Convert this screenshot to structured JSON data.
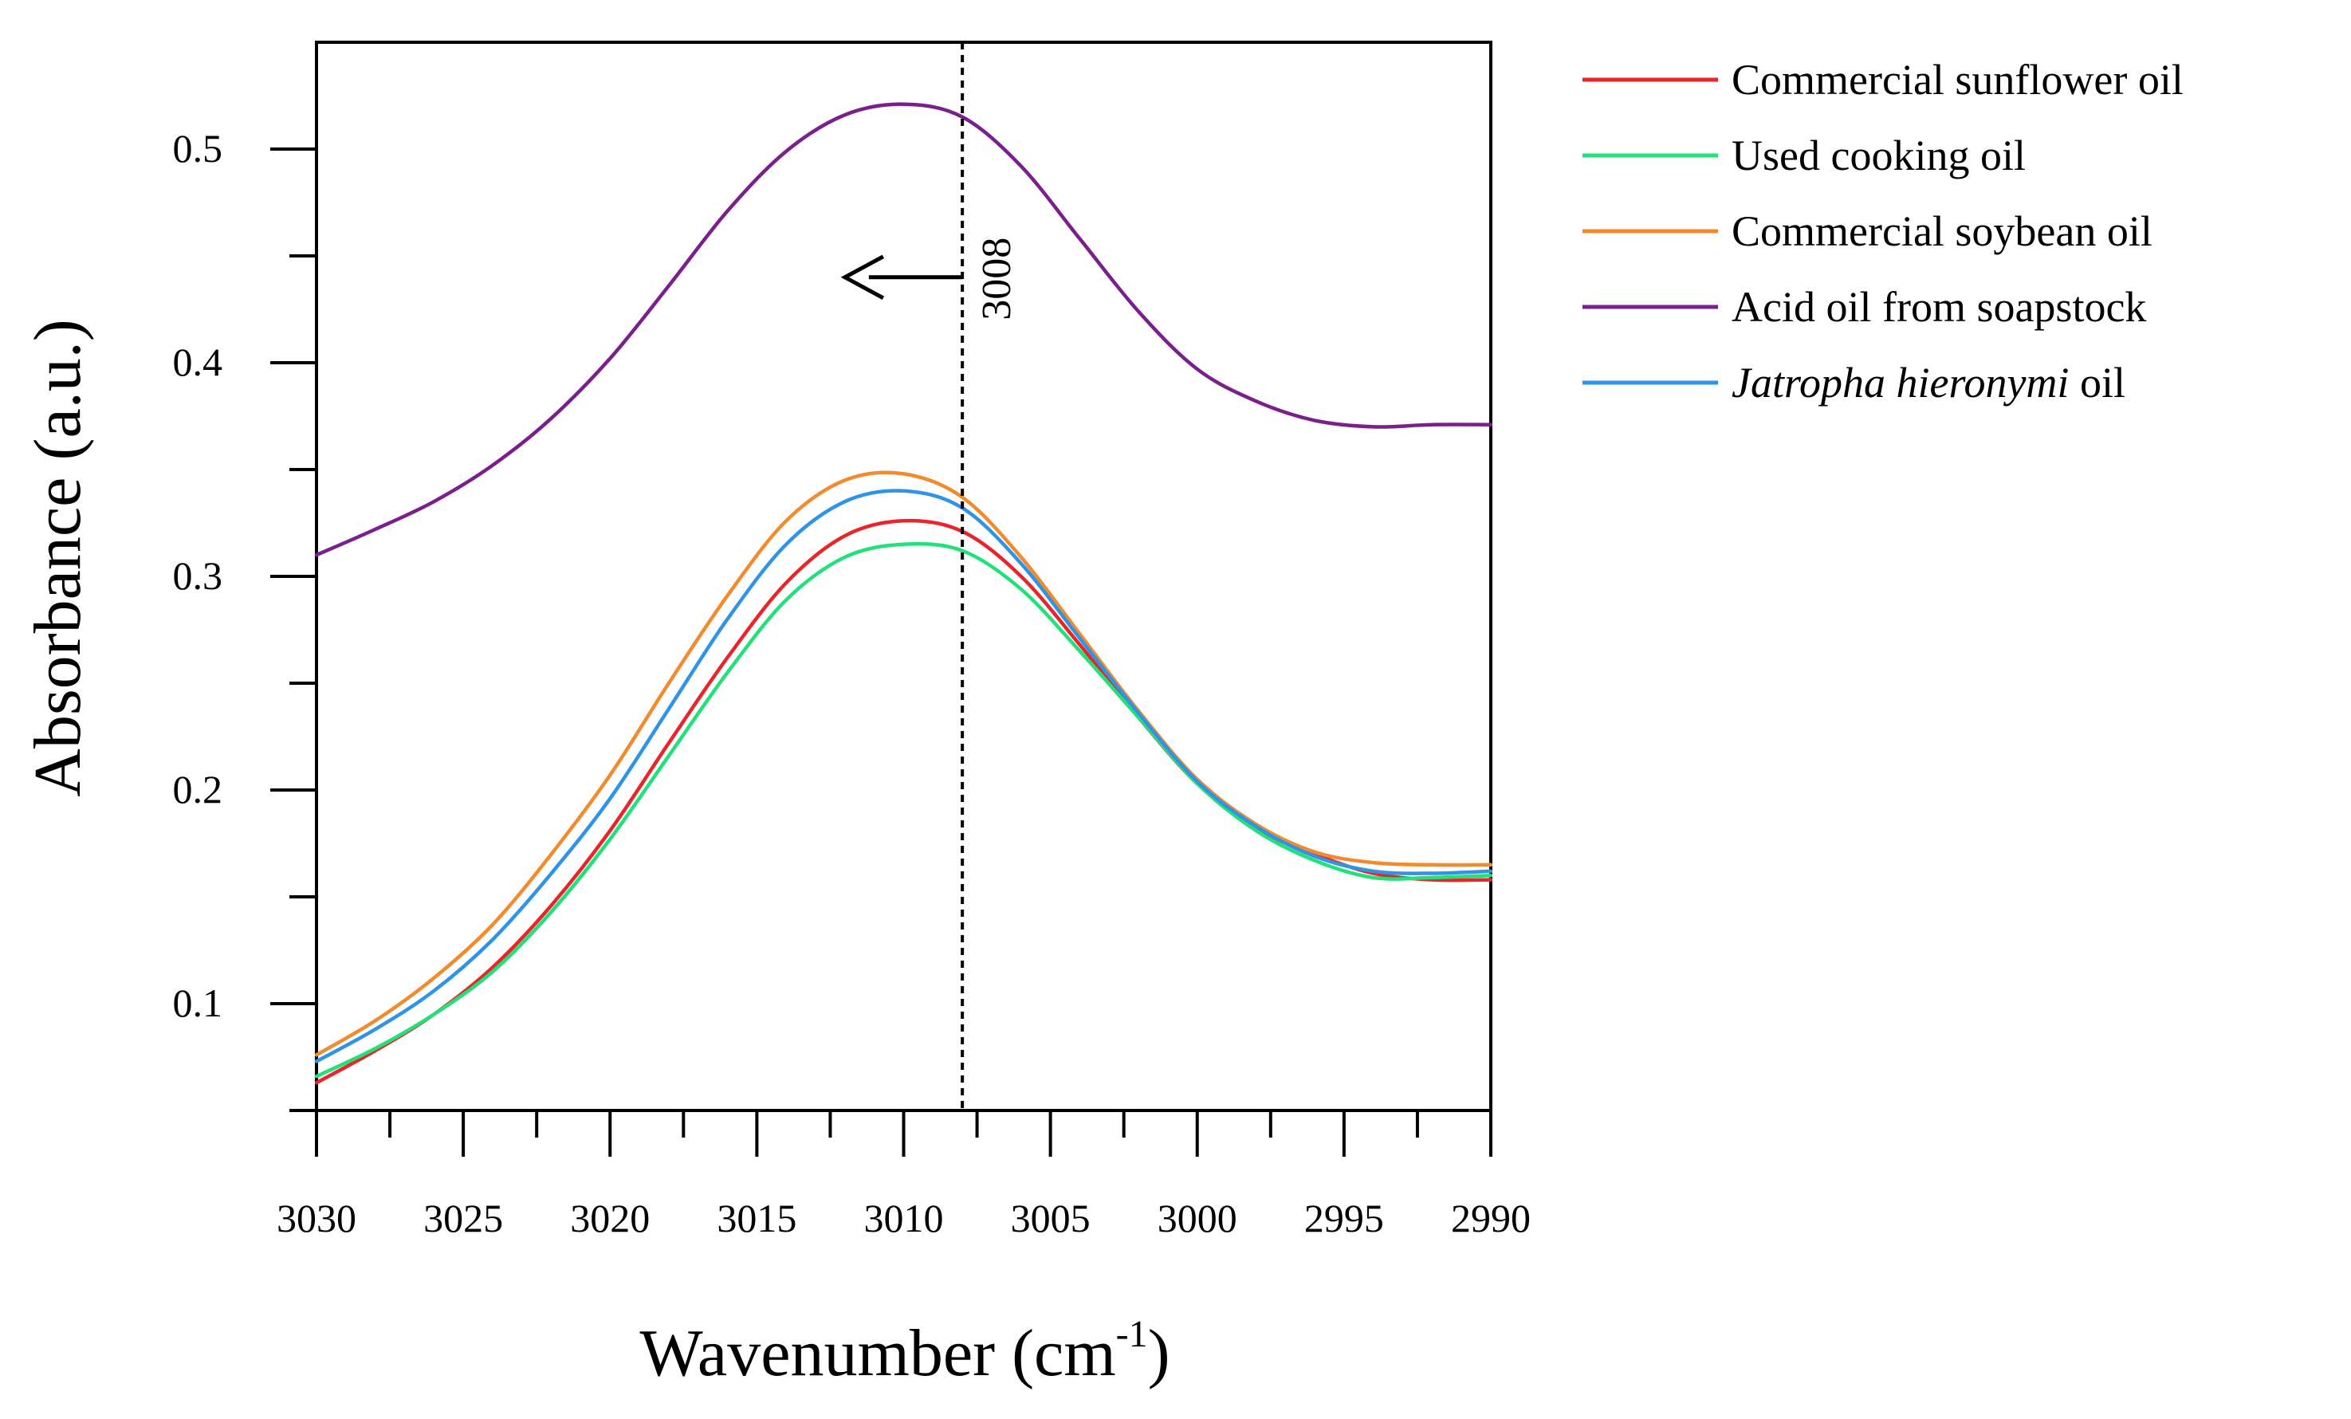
{
  "chart_data": {
    "type": "line",
    "title": "",
    "xlabel": "Wavenumber (cm",
    "xlabel_sup": "-1",
    "xlabel_close": ")",
    "ylabel": "Absorbance (a.u.)",
    "xlim": [
      3030,
      2990
    ],
    "ylim": [
      0.05,
      0.55
    ],
    "x_ticks": [
      3030,
      3025,
      3020,
      3015,
      3010,
      3005,
      3000,
      2995,
      2990
    ],
    "x_tick_labels": [
      "3030",
      "3025",
      "3020",
      "3015",
      "3010",
      "3005",
      "3000",
      "2995",
      "2990"
    ],
    "y_ticks": [
      0.1,
      0.2,
      0.3,
      0.4,
      0.5
    ],
    "y_tick_labels": [
      "0.1",
      "0.2",
      "0.3",
      "0.4",
      "0.5"
    ],
    "annotation": {
      "label": "3008",
      "x": 3008,
      "arrow_from_x": 3008,
      "arrow_to_x": 3012,
      "arrow_y": 0.44
    },
    "legend_position": "right",
    "x": [
      3030,
      3028,
      3026,
      3024,
      3022,
      3020,
      3018,
      3016,
      3014,
      3012,
      3010,
      3008,
      3006,
      3004,
      3002,
      3000,
      2998,
      2996,
      2994,
      2992,
      2990
    ],
    "series": [
      {
        "name": "Commercial sunflower oil",
        "name_italic": "",
        "name_rest": "",
        "color": "#e8262a",
        "values": [
          0.063,
          0.078,
          0.095,
          0.117,
          0.146,
          0.181,
          0.222,
          0.262,
          0.297,
          0.319,
          0.326,
          0.321,
          0.3,
          0.268,
          0.234,
          0.203,
          0.182,
          0.17,
          0.161,
          0.158,
          0.158
        ]
      },
      {
        "name": "Used cooking oil",
        "name_italic": "",
        "name_rest": "",
        "color": "#22e07a",
        "values": [
          0.066,
          0.079,
          0.095,
          0.115,
          0.143,
          0.177,
          0.216,
          0.255,
          0.289,
          0.309,
          0.315,
          0.312,
          0.294,
          0.265,
          0.234,
          0.203,
          0.181,
          0.167,
          0.159,
          0.159,
          0.16
        ]
      },
      {
        "name": "Commercial soybean oil",
        "name_italic": "",
        "name_rest": "",
        "color": "#f28b2e",
        "values": [
          0.076,
          0.092,
          0.112,
          0.137,
          0.17,
          0.207,
          0.25,
          0.291,
          0.326,
          0.345,
          0.348,
          0.337,
          0.309,
          0.273,
          0.237,
          0.205,
          0.184,
          0.171,
          0.166,
          0.165,
          0.165
        ]
      },
      {
        "name": "Acid oil from soapstock",
        "name_italic": "",
        "name_rest": "",
        "color": "#7a1f8c",
        "values": [
          0.31,
          0.322,
          0.335,
          0.352,
          0.374,
          0.402,
          0.436,
          0.471,
          0.499,
          0.516,
          0.521,
          0.515,
          0.492,
          0.458,
          0.424,
          0.397,
          0.382,
          0.373,
          0.37,
          0.371,
          0.371
        ]
      },
      {
        "name": "",
        "name_italic": "Jatropha hieronymi",
        "name_rest": " oil",
        "color": "#2f93e6",
        "values": [
          0.073,
          0.088,
          0.106,
          0.13,
          0.161,
          0.196,
          0.238,
          0.28,
          0.315,
          0.335,
          0.34,
          0.332,
          0.306,
          0.271,
          0.236,
          0.204,
          0.183,
          0.169,
          0.162,
          0.161,
          0.162
        ]
      }
    ]
  }
}
